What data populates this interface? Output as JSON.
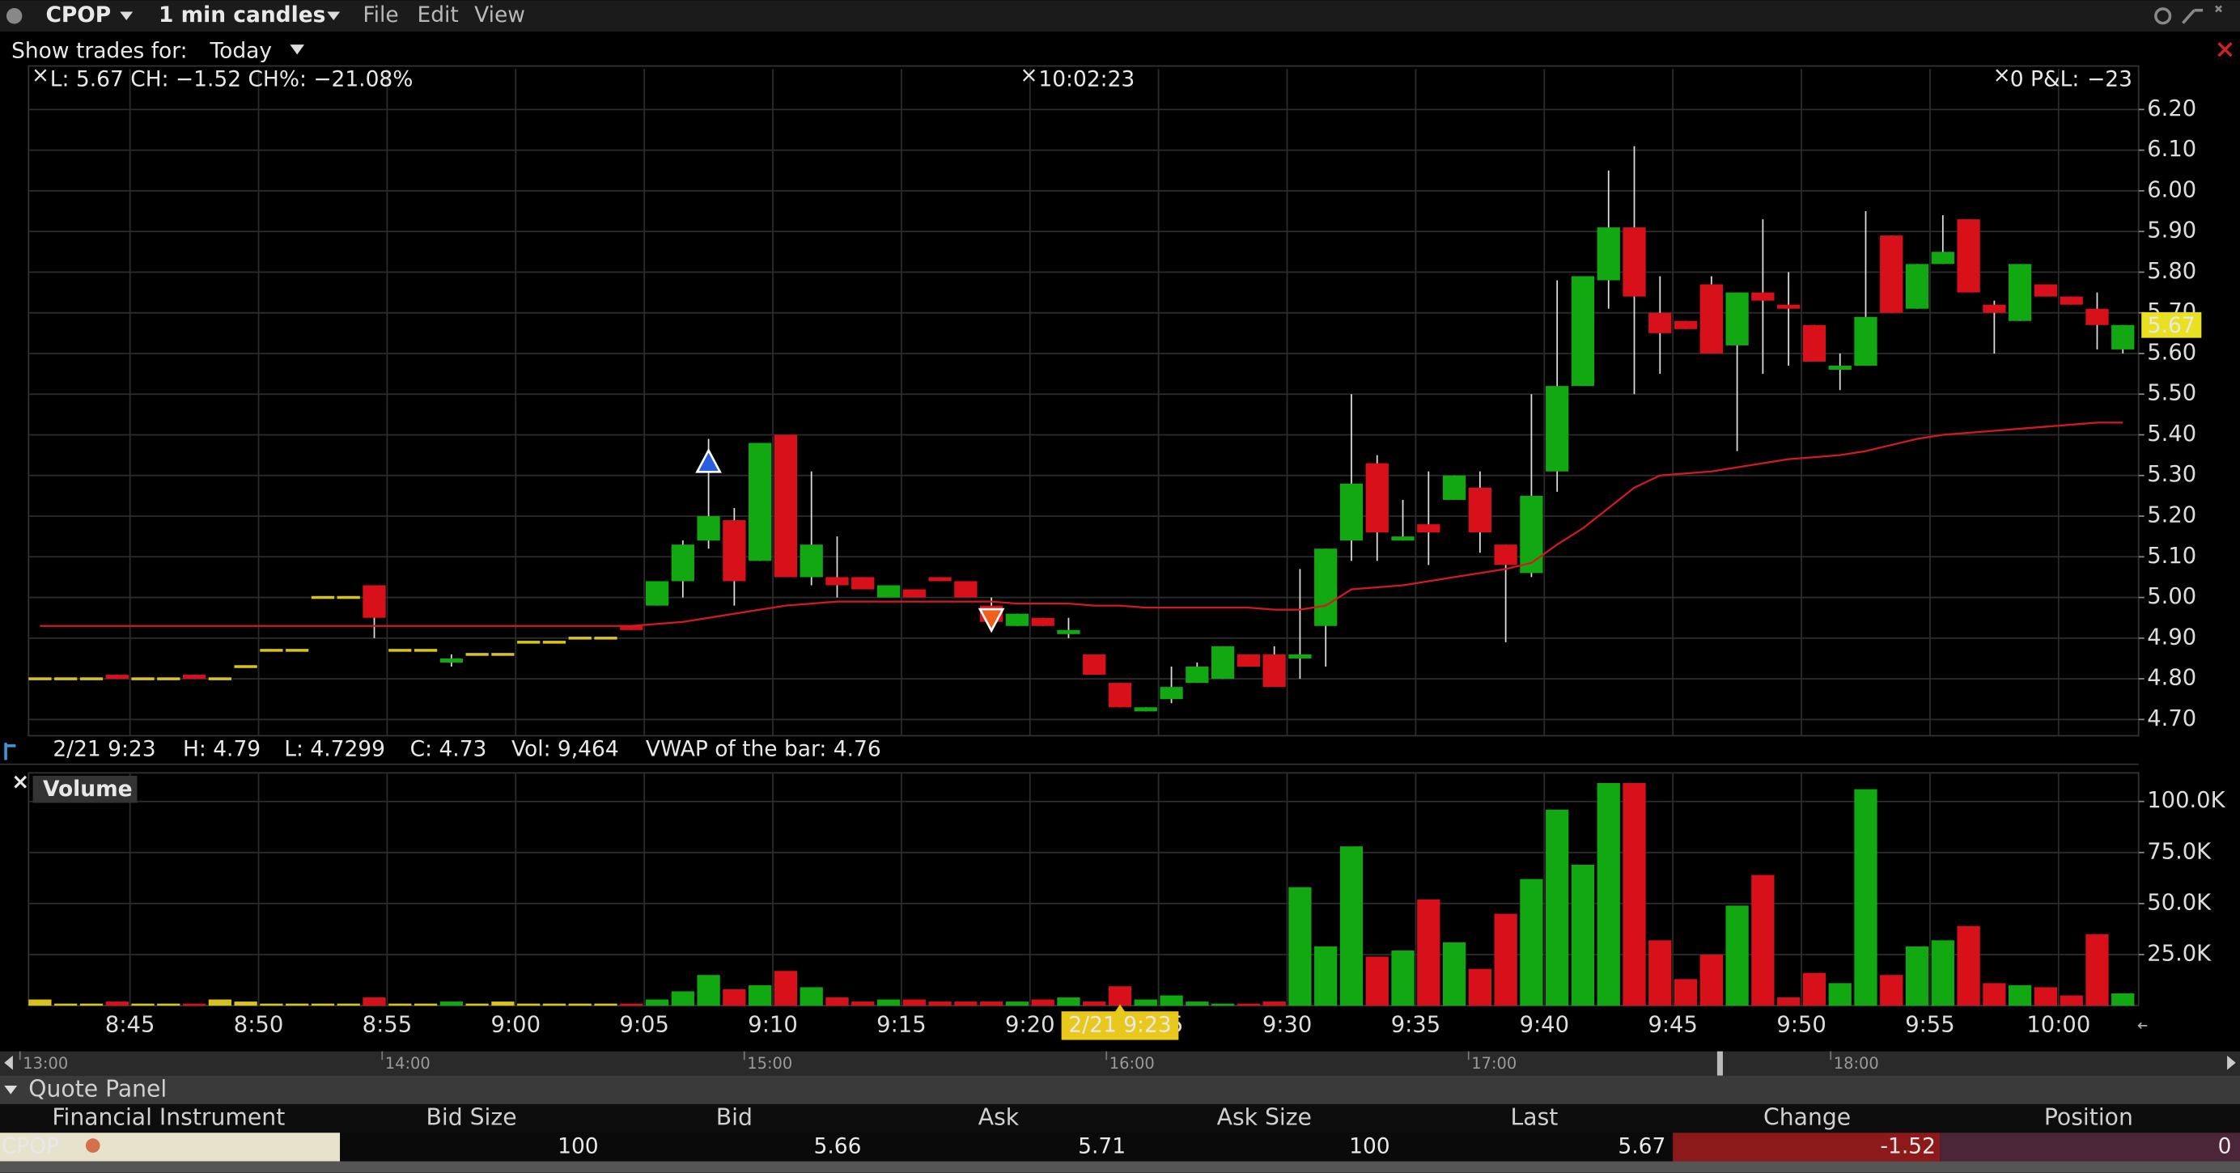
{
  "toolbar": {
    "symbol": "CPOP",
    "interval": "1 min candles",
    "menu": [
      "File",
      "Edit",
      "View"
    ]
  },
  "trades_filter": {
    "label": "Show trades for:",
    "value": "Today"
  },
  "chart_data": [
    {
      "type": "candlestick",
      "summary": "L: 5.67 CH: −1.52 CH%: −21.08%",
      "clock": "10:02:23",
      "pnl_label": "0 P&L:",
      "pnl_value": "−23",
      "last_price": 5.67,
      "bar_info": [
        "2/21 9:23",
        "H: 4.79",
        "L: 4.7299",
        "C: 4.73",
        "Vol: 9,464",
        "VWAP of the bar: 4.76"
      ],
      "x": [
        "8:41",
        "8:42",
        "8:43",
        "8:44",
        "8:45",
        "8:46",
        "8:47",
        "8:48",
        "8:49",
        "8:50",
        "8:51",
        "8:52",
        "8:53",
        "8:54",
        "8:55",
        "8:56",
        "8:57",
        "8:58",
        "8:59",
        "9:00",
        "9:01",
        "9:02",
        "9:03",
        "9:04",
        "9:05",
        "9:06",
        "9:07",
        "9:08",
        "9:09",
        "9:10",
        "9:11",
        "9:12",
        "9:13",
        "9:14",
        "9:15",
        "9:16",
        "9:17",
        "9:18",
        "9:19",
        "9:20",
        "9:21",
        "9:22",
        "9:23",
        "9:24",
        "9:25",
        "9:26",
        "9:27",
        "9:28",
        "9:29",
        "9:30",
        "9:31",
        "9:32",
        "9:33",
        "9:34",
        "9:35",
        "9:36",
        "9:37",
        "9:38",
        "9:39",
        "9:40",
        "9:41",
        "9:42",
        "9:43",
        "9:44",
        "9:45",
        "9:46",
        "9:47",
        "9:48",
        "9:49",
        "9:50",
        "9:51",
        "9:52",
        "9:53",
        "9:54",
        "9:55",
        "9:56",
        "9:57",
        "9:58",
        "9:59",
        "10:00",
        "10:01",
        "10:02"
      ],
      "open": [
        4.8,
        4.8,
        4.8,
        4.81,
        4.8,
        4.8,
        4.81,
        4.8,
        4.83,
        4.87,
        4.87,
        5.0,
        5.0,
        5.03,
        4.87,
        4.87,
        4.84,
        4.86,
        4.86,
        4.89,
        4.89,
        4.9,
        4.9,
        4.93,
        4.98,
        5.04,
        5.14,
        5.19,
        5.09,
        5.4,
        5.05,
        5.05,
        5.05,
        5.0,
        5.02,
        5.05,
        5.04,
        4.98,
        4.93,
        4.95,
        4.91,
        4.86,
        4.79,
        4.72,
        4.75,
        4.79,
        4.8,
        4.86,
        4.86,
        4.85,
        4.93,
        5.14,
        5.33,
        5.14,
        5.18,
        5.24,
        5.27,
        5.13,
        5.06,
        5.31,
        5.52,
        5.78,
        5.91,
        5.7,
        5.68,
        5.77,
        5.62,
        5.75,
        5.72,
        5.67,
        5.56,
        5.57,
        5.89,
        5.71,
        5.82,
        5.93,
        5.72,
        5.68,
        5.77,
        5.74,
        5.71,
        5.61
      ],
      "high": [
        4.8,
        4.8,
        4.8,
        4.81,
        4.8,
        4.8,
        4.81,
        4.8,
        4.83,
        4.87,
        4.87,
        5.0,
        5.0,
        5.03,
        4.87,
        4.87,
        4.86,
        4.86,
        4.86,
        4.89,
        4.89,
        4.9,
        4.9,
        4.93,
        5.04,
        5.14,
        5.39,
        5.22,
        5.38,
        5.4,
        5.31,
        5.15,
        5.05,
        5.03,
        5.02,
        5.05,
        5.04,
        5.0,
        4.96,
        4.95,
        4.95,
        4.86,
        4.79,
        4.73,
        4.83,
        4.84,
        4.88,
        4.86,
        4.88,
        5.07,
        5.12,
        5.5,
        5.35,
        5.24,
        5.31,
        5.3,
        5.31,
        5.13,
        5.5,
        5.78,
        5.79,
        6.05,
        6.11,
        5.79,
        5.68,
        5.79,
        5.75,
        5.93,
        5.8,
        5.67,
        5.6,
        5.95,
        5.89,
        5.82,
        5.94,
        5.93,
        5.73,
        5.82,
        5.77,
        5.74,
        5.75,
        5.67
      ],
      "low": [
        4.8,
        4.8,
        4.8,
        4.8,
        4.8,
        4.8,
        4.8,
        4.8,
        4.83,
        4.87,
        4.87,
        5.0,
        5.0,
        4.9,
        4.87,
        4.87,
        4.83,
        4.86,
        4.86,
        4.89,
        4.89,
        4.9,
        4.9,
        4.92,
        4.98,
        5.0,
        5.12,
        4.98,
        5.09,
        5.05,
        5.03,
        5.0,
        5.02,
        5.0,
        5.0,
        5.04,
        5.0,
        4.93,
        4.93,
        4.93,
        4.9,
        4.81,
        4.7299,
        4.72,
        4.74,
        4.79,
        4.8,
        4.83,
        4.78,
        4.8,
        4.83,
        5.09,
        5.09,
        5.14,
        5.08,
        5.24,
        5.11,
        4.89,
        5.05,
        5.26,
        5.52,
        5.71,
        5.5,
        5.55,
        5.66,
        5.6,
        5.36,
        5.55,
        5.57,
        5.58,
        5.51,
        5.57,
        5.7,
        5.71,
        5.82,
        5.75,
        5.6,
        5.68,
        5.74,
        5.72,
        5.61,
        5.6
      ],
      "close": [
        4.8,
        4.8,
        4.8,
        4.8,
        4.8,
        4.8,
        4.8,
        4.8,
        4.83,
        4.87,
        4.87,
        5.0,
        5.0,
        4.95,
        4.87,
        4.87,
        4.85,
        4.86,
        4.86,
        4.89,
        4.89,
        4.9,
        4.9,
        4.92,
        5.04,
        5.13,
        5.2,
        5.04,
        5.38,
        5.05,
        5.13,
        5.03,
        5.02,
        5.03,
        5.0,
        5.04,
        5.0,
        4.94,
        4.96,
        4.93,
        4.92,
        4.81,
        4.73,
        4.73,
        4.78,
        4.83,
        4.88,
        4.83,
        4.78,
        4.86,
        5.12,
        5.28,
        5.16,
        5.15,
        5.16,
        5.3,
        5.16,
        5.08,
        5.25,
        5.52,
        5.79,
        5.91,
        5.74,
        5.65,
        5.66,
        5.6,
        5.75,
        5.73,
        5.71,
        5.58,
        5.57,
        5.69,
        5.7,
        5.82,
        5.85,
        5.75,
        5.7,
        5.82,
        5.74,
        5.72,
        5.67,
        5.67
      ],
      "up_color": "#12a812",
      "down_color": "#d8101a",
      "flat_color": "#d6c41a",
      "vwap": {
        "color": "#d21a22",
        "values": [
          4.93,
          4.93,
          4.93,
          4.93,
          4.93,
          4.93,
          4.93,
          4.93,
          4.93,
          4.93,
          4.93,
          4.93,
          4.93,
          4.93,
          4.93,
          4.93,
          4.93,
          4.93,
          4.93,
          4.93,
          4.93,
          4.93,
          4.93,
          4.93,
          4.935,
          4.94,
          4.95,
          4.96,
          4.97,
          4.98,
          4.985,
          4.99,
          4.99,
          4.99,
          4.99,
          4.99,
          4.99,
          4.99,
          4.985,
          4.985,
          4.985,
          4.98,
          4.98,
          4.975,
          4.975,
          4.975,
          4.975,
          4.975,
          4.97,
          4.97,
          4.98,
          5.02,
          5.025,
          5.03,
          5.04,
          5.05,
          5.06,
          5.07,
          5.085,
          5.13,
          5.17,
          5.22,
          5.27,
          5.3,
          5.305,
          5.31,
          5.32,
          5.33,
          5.34,
          5.345,
          5.35,
          5.36,
          5.375,
          5.39,
          5.4,
          5.405,
          5.41,
          5.415,
          5.42,
          5.425,
          5.43,
          5.43
        ]
      },
      "markers": [
        {
          "x": "9:07",
          "value": 5.33,
          "kind": "buy",
          "color": "#2a5ee0"
        },
        {
          "x": "9:18",
          "value": 4.95,
          "kind": "sell",
          "color": "#f0601c"
        }
      ],
      "ylim": [
        4.66,
        6.3
      ],
      "yticks": [
        {
          "value": 6.2,
          "label": "6.20"
        },
        {
          "value": 6.1,
          "label": "6.10"
        },
        {
          "value": 6,
          "label": "6.00"
        },
        {
          "value": 5.9,
          "label": "5.90"
        },
        {
          "value": 5.8,
          "label": "5.80"
        },
        {
          "value": 5.7,
          "label": "5.70"
        },
        {
          "value": 5.6,
          "label": "5.60"
        },
        {
          "value": 5.5,
          "label": "5.50"
        },
        {
          "value": 5.4,
          "label": "5.40"
        },
        {
          "value": 5.3,
          "label": "5.30"
        },
        {
          "value": 5.2,
          "label": "5.20"
        },
        {
          "value": 5.1,
          "label": "5.10"
        },
        {
          "value": 5,
          "label": "5.00"
        },
        {
          "value": 4.9,
          "label": "4.90"
        },
        {
          "value": 4.8,
          "label": "4.80"
        },
        {
          "value": 4.7,
          "label": "4.70"
        }
      ],
      "grid": true
    },
    {
      "type": "bar",
      "title": "Volume",
      "values": [
        3,
        1,
        1,
        2,
        1,
        1,
        1,
        3,
        2,
        1,
        1,
        1,
        1,
        4,
        1,
        1,
        2,
        1,
        2,
        1,
        1,
        1,
        1,
        1,
        3,
        7,
        15,
        8,
        10,
        17,
        9,
        4,
        2,
        3,
        3,
        2,
        2,
        2,
        2,
        3,
        4,
        2,
        9.464,
        3,
        5,
        2,
        1,
        1,
        2,
        58,
        29,
        78,
        24,
        27,
        52,
        31,
        18,
        45,
        62,
        96,
        69,
        109,
        109,
        32,
        13,
        25,
        49,
        64,
        4,
        16,
        11,
        106,
        15,
        29,
        32,
        39,
        11,
        10,
        9,
        5,
        35,
        6
      ],
      "ylim": [
        0,
        114
      ],
      "yticks": [
        {
          "value": 100,
          "label": "100.0K"
        },
        {
          "value": 75,
          "label": "75.0K"
        },
        {
          "value": 50,
          "label": "50.0K"
        },
        {
          "value": 25,
          "label": "25.0K"
        }
      ],
      "xticks": [
        "8:45",
        "8:50",
        "8:55",
        "9:00",
        "9:05",
        "9:10",
        "9:15",
        "9:20",
        "9:25",
        "9:30",
        "9:35",
        "9:40",
        "9:45",
        "9:50",
        "9:55",
        "10:00"
      ],
      "crosshair": {
        "label": "2/21 9:23",
        "x": "9:23"
      },
      "grid": true
    }
  ],
  "overview_ticks": [
    "13:00",
    "14:00",
    "15:00",
    "16:00",
    "17:00",
    "18:00"
  ],
  "quote_panel": {
    "title": "Quote Panel",
    "columns": [
      "Financial Instrument",
      "Bid Size",
      "Bid",
      "Ask",
      "Ask Size",
      "Last",
      "Change",
      "Position"
    ],
    "rows": [
      [
        "CPOP",
        "100",
        "5.66",
        "5.71",
        "100",
        "5.67",
        "-1.52",
        "0"
      ]
    ]
  }
}
